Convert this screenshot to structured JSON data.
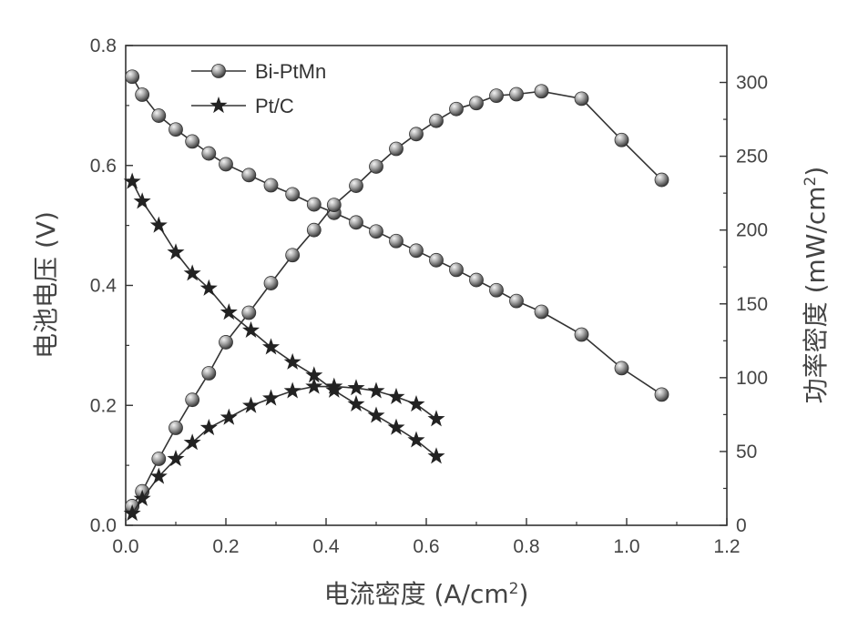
{
  "chart_data": {
    "type": "line",
    "xlabel": "电流密度 (A/cm",
    "xlabel_sup": "2",
    "xlabel_tail": ")",
    "ylabel_left": "电池电压 (V)",
    "ylabel_right": "功率密度 (mW/cm",
    "ylabel_right_sup": "2",
    "ylabel_right_tail": ")",
    "xlim": [
      0.0,
      1.2
    ],
    "ylim_left": [
      0.0,
      0.8
    ],
    "ylim_right": [
      0,
      325
    ],
    "x_ticks": [
      "0.0",
      "0.2",
      "0.4",
      "0.6",
      "0.8",
      "1.0",
      "1.2"
    ],
    "y_left_ticks": [
      "0.0",
      "0.2",
      "0.4",
      "0.6",
      "0.8"
    ],
    "y_right_ticks": [
      "0",
      "50",
      "100",
      "150",
      "200",
      "250",
      "300"
    ],
    "legend_position": "top-left",
    "series": [
      {
        "name": "Bi-PtMn",
        "marker": "sphere",
        "axis": "left",
        "kind": "voltage",
        "x": [
          0.013,
          0.033,
          0.066,
          0.1,
          0.133,
          0.166,
          0.2,
          0.246,
          0.29,
          0.333,
          0.376,
          0.416,
          0.46,
          0.5,
          0.54,
          0.58,
          0.62,
          0.66,
          0.7,
          0.74,
          0.78,
          0.83,
          0.91,
          0.99,
          1.07
        ],
        "y": [
          0.748,
          0.718,
          0.683,
          0.66,
          0.64,
          0.62,
          0.602,
          0.584,
          0.567,
          0.552,
          0.535,
          0.521,
          0.505,
          0.49,
          0.474,
          0.458,
          0.442,
          0.426,
          0.409,
          0.392,
          0.374,
          0.356,
          0.318,
          0.262,
          0.218
        ]
      },
      {
        "name": "Bi-PtMn",
        "marker": "sphere",
        "axis": "right",
        "kind": "power",
        "x": [
          0.013,
          0.033,
          0.066,
          0.1,
          0.133,
          0.166,
          0.2,
          0.246,
          0.29,
          0.333,
          0.376,
          0.416,
          0.46,
          0.5,
          0.54,
          0.58,
          0.62,
          0.66,
          0.7,
          0.74,
          0.78,
          0.83,
          0.91,
          0.99,
          1.07
        ],
        "y": [
          13,
          23,
          45,
          66,
          85,
          103,
          124,
          144,
          164,
          183,
          200,
          217,
          230,
          243,
          255,
          265,
          274,
          282,
          286,
          291,
          292,
          294,
          289,
          261,
          234
        ]
      },
      {
        "name": "Pt/C",
        "marker": "star",
        "axis": "left",
        "kind": "voltage",
        "x": [
          0.013,
          0.033,
          0.066,
          0.1,
          0.133,
          0.166,
          0.206,
          0.25,
          0.29,
          0.333,
          0.376,
          0.416,
          0.46,
          0.5,
          0.54,
          0.58,
          0.62
        ],
        "y": [
          0.573,
          0.54,
          0.5,
          0.455,
          0.42,
          0.395,
          0.355,
          0.325,
          0.297,
          0.272,
          0.25,
          0.225,
          0.202,
          0.183,
          0.163,
          0.142,
          0.115
        ]
      },
      {
        "name": "Pt/C",
        "marker": "star",
        "axis": "right",
        "kind": "power",
        "x": [
          0.013,
          0.033,
          0.066,
          0.1,
          0.133,
          0.166,
          0.206,
          0.25,
          0.29,
          0.333,
          0.376,
          0.416,
          0.46,
          0.5,
          0.54,
          0.58,
          0.62
        ],
        "y": [
          8,
          18,
          33,
          45,
          56,
          66,
          73,
          81,
          86,
          91,
          94,
          94,
          93,
          91,
          87,
          82,
          72
        ]
      }
    ]
  }
}
